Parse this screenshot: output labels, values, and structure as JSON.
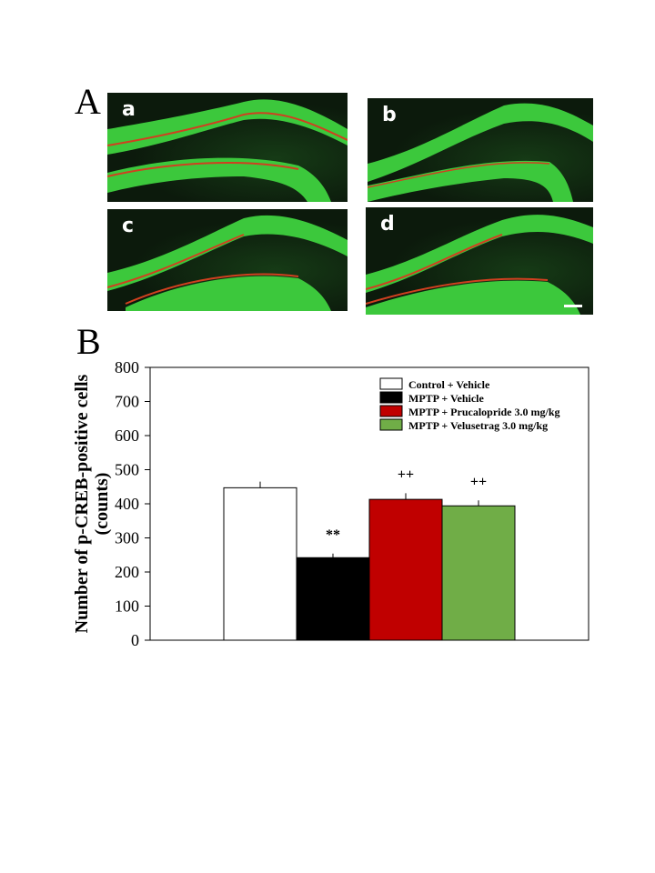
{
  "panel_a": {
    "letter": "A",
    "images": [
      {
        "label": "a"
      },
      {
        "label": "b"
      },
      {
        "label": "c"
      },
      {
        "label": "d"
      }
    ]
  },
  "panel_b": {
    "letter": "B"
  },
  "colors": {
    "control": "#ffffff",
    "mptp": "#000000",
    "prucalopride": "#c00000",
    "velusetrag": "#70ad47",
    "tissue_green": "#3cc83c",
    "cell_layer_red": "#d04020"
  },
  "chart_data": {
    "type": "bar",
    "title": "",
    "xlabel": "",
    "ylabel_line1": "Number of p-CREB-positive cells",
    "ylabel_line2": "(counts)",
    "ylim": [
      0,
      800
    ],
    "yticks": [
      "0",
      "100",
      "200",
      "300",
      "400",
      "500",
      "600",
      "700",
      "800"
    ],
    "legend_position": "top-right",
    "series": [
      {
        "name": "Control + Vehicle",
        "value": 447,
        "error": 18,
        "annotation": ""
      },
      {
        "name": "MPTP + Vehicle",
        "value": 242,
        "error": 12,
        "annotation": "**"
      },
      {
        "name": "MPTP + Prucalopride 3.0 mg/kg",
        "value": 413,
        "error": 18,
        "annotation": "++"
      },
      {
        "name": "MPTP + Velusetrag 3.0 mg/kg",
        "value": 394,
        "error": 16,
        "annotation": "++"
      }
    ]
  }
}
